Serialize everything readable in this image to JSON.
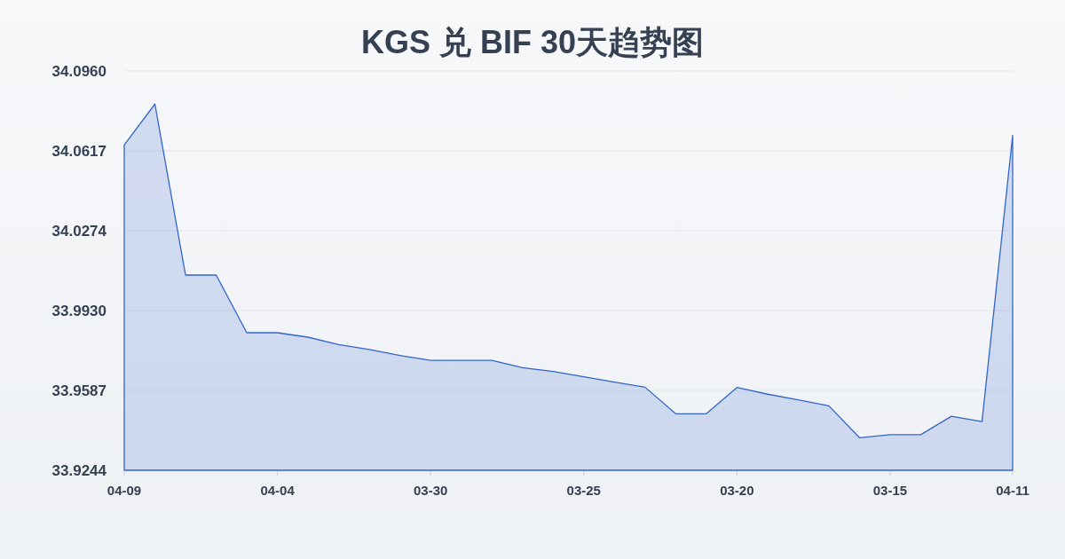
{
  "chart_data": {
    "type": "area",
    "title": "KGS 兑 BIF 30天趋势图",
    "categories": [
      "04-09",
      null,
      null,
      null,
      null,
      "04-04",
      null,
      null,
      null,
      null,
      "03-30",
      null,
      null,
      null,
      null,
      "03-25",
      null,
      null,
      null,
      null,
      "03-20",
      null,
      null,
      null,
      null,
      "03-15",
      null,
      null,
      null,
      "04-11"
    ],
    "values": [
      34.0642,
      34.0818,
      34.0083,
      34.0083,
      33.9835,
      33.9835,
      33.9816,
      33.9784,
      33.9763,
      33.9737,
      33.9716,
      33.9716,
      33.9716,
      33.9685,
      33.9669,
      33.9646,
      33.9623,
      33.9601,
      33.9487,
      33.9487,
      33.96,
      33.9571,
      33.9547,
      33.9521,
      33.9384,
      33.9397,
      33.9397,
      33.9476,
      33.9453,
      34.0683
    ],
    "color": "#3366cc",
    "ylim": [
      33.9244,
      34.096
    ],
    "yticks": [
      33.9244,
      33.9587,
      {
        "value": 33.993,
        "label": "33.9930"
      },
      34.0274,
      34.0617,
      {
        "value": 34.096,
        "label": "34.0960"
      }
    ],
    "grid": "y"
  }
}
